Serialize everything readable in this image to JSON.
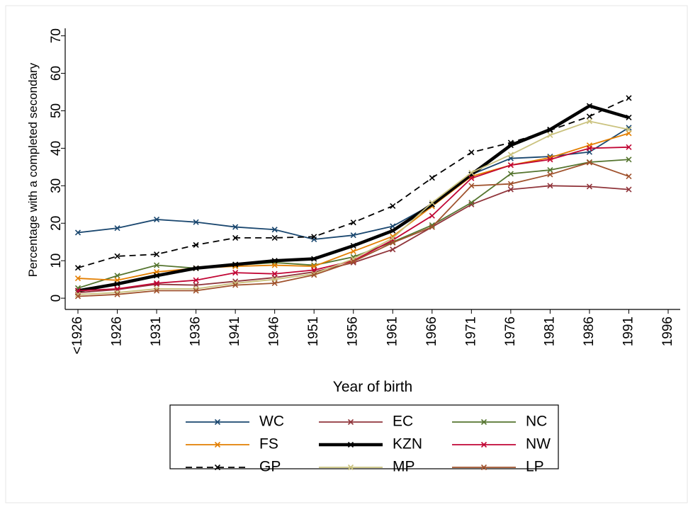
{
  "chart_data": {
    "type": "line",
    "x_label": "Year of birth",
    "y_label": "Percentage with a completed secondary",
    "categories": [
      "<1926",
      "1926",
      "1931",
      "1936",
      "1941",
      "1946",
      "1951",
      "1956",
      "1961",
      "1966",
      "1971",
      "1976",
      "1981",
      "1986",
      "1991",
      "1996"
    ],
    "ylim": [
      -3,
      72
    ],
    "yticks": [
      0,
      10,
      20,
      30,
      40,
      50,
      60,
      70
    ],
    "grid": false,
    "legend": "bottom",
    "series": [
      {
        "name": "WC",
        "color": "#1a476f",
        "values": [
          17.5,
          18.7,
          21,
          20.3,
          19,
          18.3,
          15.7,
          16.8,
          19.2,
          25,
          33,
          37.3,
          37.8,
          39,
          45.5,
          null
        ]
      },
      {
        "name": "EC",
        "color": "#90353b",
        "values": [
          1.5,
          2.3,
          3.7,
          3.5,
          4.5,
          5.5,
          7,
          9.5,
          13,
          19,
          25,
          29,
          30,
          29.8,
          29,
          null
        ]
      },
      {
        "name": "NC",
        "color": "#55752f",
        "values": [
          2.7,
          6,
          8.8,
          8,
          8.8,
          9.5,
          8.8,
          11,
          15,
          19.5,
          25.5,
          33.2,
          34.2,
          36.3,
          37,
          null
        ]
      },
      {
        "name": "FS",
        "color": "#e37e00",
        "values": [
          5.3,
          4.8,
          7,
          8,
          8.5,
          8.8,
          8.5,
          12.5,
          16.5,
          24.5,
          32.5,
          35.5,
          37.5,
          40.8,
          44,
          null
        ]
      },
      {
        "name": "KZN",
        "color": "#000000",
        "line_width": 4.5,
        "values": [
          2,
          3.8,
          6,
          8,
          9,
          10,
          10.5,
          14,
          18,
          25,
          33,
          40.8,
          45,
          51.3,
          48.2,
          null
        ]
      },
      {
        "name": "NW",
        "color": "#c10534",
        "values": [
          2,
          2.5,
          4,
          4.8,
          6.8,
          6.5,
          7.5,
          10,
          15.5,
          22,
          32,
          35.5,
          37,
          40,
          40.3,
          null
        ]
      },
      {
        "name": "GP",
        "color": "#000000",
        "line_style": "dashed",
        "values": [
          8.1,
          11.2,
          11.7,
          14.2,
          16.1,
          16.1,
          16.4,
          20.2,
          24.6,
          32.1,
          38.9,
          41.5,
          44.8,
          48.5,
          53.4,
          null
        ]
      },
      {
        "name": "MP",
        "color": "#cac27e",
        "values": [
          1,
          1.5,
          2.5,
          2.5,
          4,
          5,
          6.5,
          10.5,
          16,
          25.5,
          33.5,
          38.3,
          43.5,
          47.2,
          45,
          null
        ]
      },
      {
        "name": "LP",
        "color": "#a0522d",
        "values": [
          0.5,
          1,
          2,
          2,
          3.5,
          4,
          6.2,
          9.8,
          14.8,
          19,
          30,
          30.5,
          33,
          36.2,
          32.5,
          null
        ]
      }
    ]
  }
}
